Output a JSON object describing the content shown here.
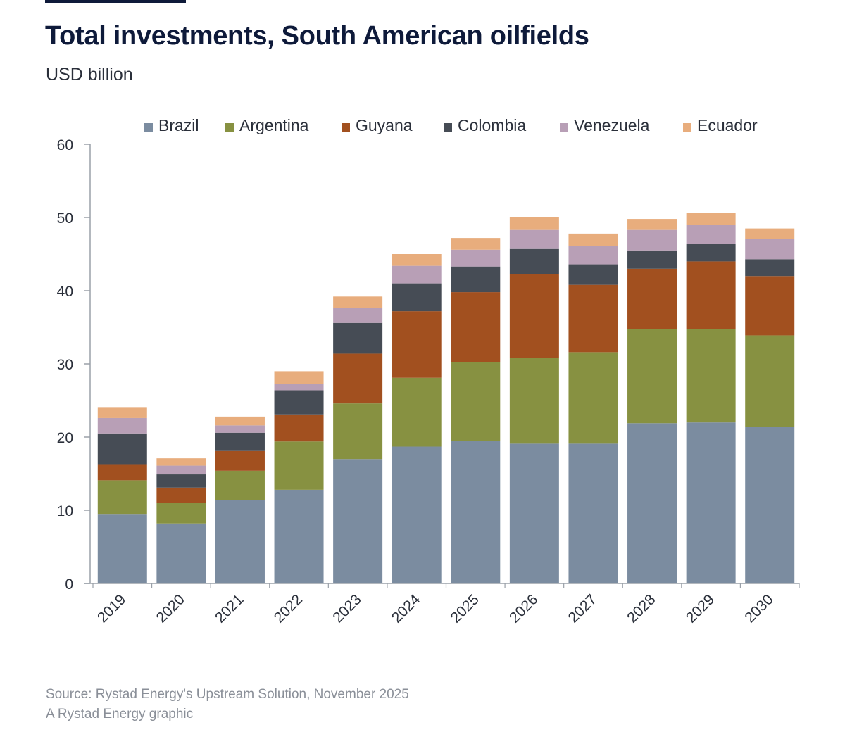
{
  "header": {
    "title": "Total investments, South American oilfields",
    "subtitle": "USD billion"
  },
  "footer": {
    "source": "Source: Rystad Energy's Upstream Solution, November 2025",
    "credit": "A Rystad Energy graphic"
  },
  "chart_data": {
    "type": "bar",
    "stacked": true,
    "categories": [
      "2019",
      "2020",
      "2021",
      "2022",
      "2023",
      "2024",
      "2025",
      "2026",
      "2027",
      "2028",
      "2029",
      "2030"
    ],
    "ylim": [
      0,
      60
    ],
    "yticks": [
      0,
      10,
      20,
      30,
      40,
      50,
      60
    ],
    "legend_position": "top",
    "grid": false,
    "series": [
      {
        "name": "Brazil",
        "color": "#7b8ca0",
        "values": [
          9.5,
          8.2,
          11.4,
          12.8,
          17.0,
          18.7,
          19.5,
          19.1,
          19.1,
          21.9,
          22.0,
          21.4
        ]
      },
      {
        "name": "Argentina",
        "color": "#879141",
        "values": [
          4.6,
          2.8,
          4.0,
          6.6,
          7.6,
          9.4,
          10.7,
          11.7,
          12.5,
          12.9,
          12.8,
          12.5
        ]
      },
      {
        "name": "Guyana",
        "color": "#a2501f",
        "values": [
          2.2,
          2.1,
          2.7,
          3.7,
          6.8,
          9.1,
          9.6,
          11.5,
          9.2,
          8.2,
          9.2,
          8.1
        ]
      },
      {
        "name": "Colombia",
        "color": "#464c55",
        "values": [
          4.2,
          1.8,
          2.5,
          3.3,
          4.2,
          3.8,
          3.5,
          3.4,
          2.8,
          2.5,
          2.4,
          2.3
        ]
      },
      {
        "name": "Venezuela",
        "color": "#b89fb6",
        "values": [
          2.1,
          1.2,
          1.0,
          0.9,
          2.0,
          2.4,
          2.3,
          2.6,
          2.5,
          2.8,
          2.6,
          2.8
        ]
      },
      {
        "name": "Ecuador",
        "color": "#e8ad7d",
        "values": [
          1.5,
          1.0,
          1.2,
          1.7,
          1.6,
          1.6,
          1.6,
          1.7,
          1.7,
          1.5,
          1.6,
          1.4
        ]
      }
    ]
  }
}
